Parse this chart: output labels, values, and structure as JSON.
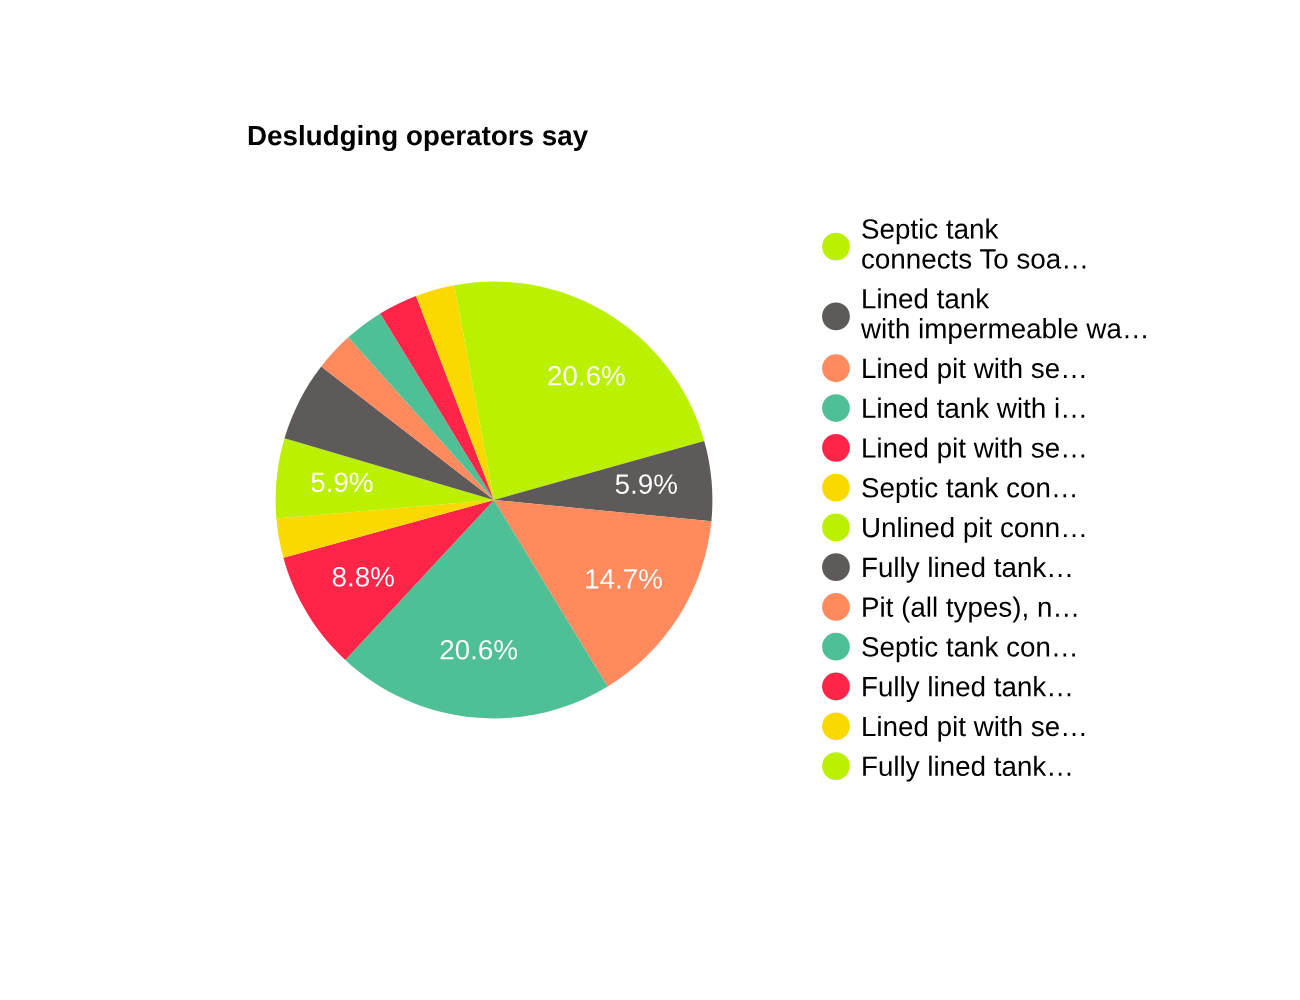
{
  "chart_data": {
    "type": "pie",
    "title": "Desludging operators say",
    "categories": [
      "Septic tank connects To soa…",
      "Lined tank with impermeable wa…",
      "Lined pit with se…",
      "Lined tank with i…",
      "Lined pit with se…",
      "Septic tank con…",
      "Unlined pit conn…",
      "Fully lined tank…",
      "Pit (all types), n…",
      "Septic tank con…",
      "Fully lined tank…",
      "Lined pit with se…",
      "Fully lined tank…"
    ],
    "values": [
      20.6,
      5.9,
      14.7,
      20.6,
      8.8,
      2.9,
      5.9,
      5.9,
      2.9,
      2.9,
      2.9,
      2.9,
      2.9
    ],
    "value_labels": [
      "20.6%",
      "5.9%",
      "14.7%",
      "20.6%",
      "8.8%",
      null,
      "5.9%",
      null,
      null,
      null,
      null,
      null,
      null
    ],
    "colors": [
      "#bbf000",
      "#5e5a59",
      "#ff8a5e",
      "#4fc095",
      "#ff2548",
      "#fad800",
      "#bbf000",
      "#5e5a59",
      "#ff8a5e",
      "#4fc095",
      "#ff2548",
      "#fad800",
      "#bbf000"
    ],
    "legend": "right"
  }
}
